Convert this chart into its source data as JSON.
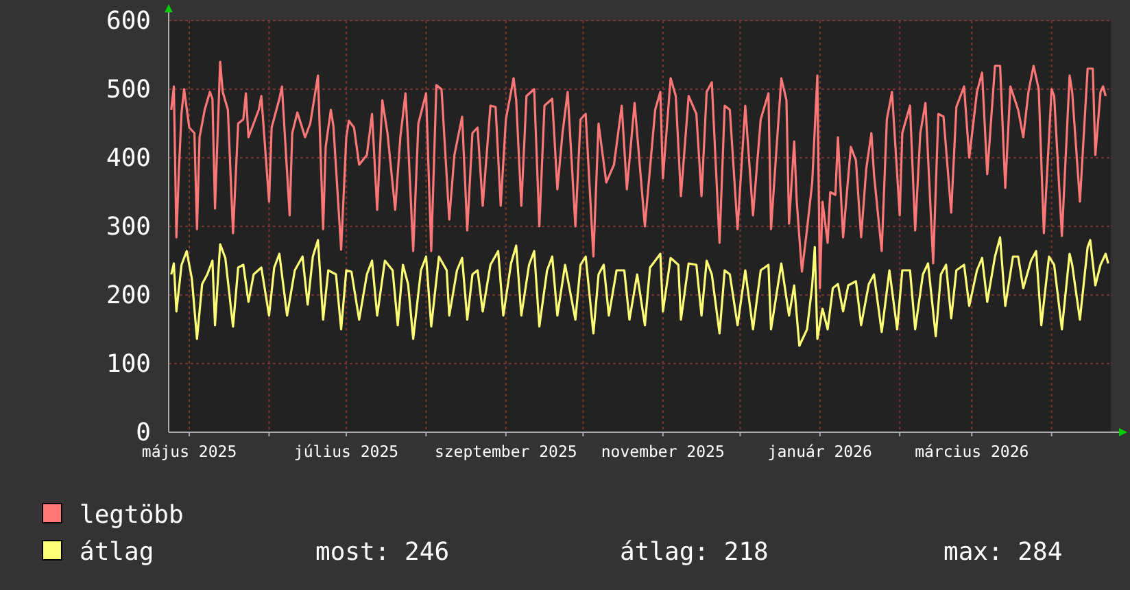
{
  "chart_data": {
    "type": "line",
    "xlim": [
      "2025-04-23",
      "2026-04-24"
    ],
    "xticks": [
      {
        "value": "2025-05-01",
        "label": "május 2025"
      },
      {
        "value": "2025-06-01",
        "label": null
      },
      {
        "value": "2025-07-01",
        "label": "július 2025"
      },
      {
        "value": "2025-08-01",
        "label": null
      },
      {
        "value": "2025-09-01",
        "label": "szeptember 2025"
      },
      {
        "value": "2025-10-01",
        "label": null
      },
      {
        "value": "2025-11-01",
        "label": "november 2025"
      },
      {
        "value": "2025-12-01",
        "label": null
      },
      {
        "value": "2026-01-01",
        "label": "január 2026"
      },
      {
        "value": "2026-02-01",
        "label": null
      },
      {
        "value": "2026-03-01",
        "label": "március 2026"
      },
      {
        "value": "2026-04-01",
        "label": null
      }
    ],
    "ylim": [
      0,
      600
    ],
    "yticks": [
      0,
      100,
      200,
      300,
      400,
      500,
      600
    ],
    "grid": true,
    "legend": "bottom",
    "annotations": [
      "most: 246",
      "átlag: 218",
      "max: 284"
    ],
    "series": [
      {
        "name": "legtöbb",
        "color": "#ff7777",
        "x": [
          "2025-04-24",
          "2025-04-25",
          "2025-04-26",
          "2025-04-27",
          "2025-04-28",
          "2025-04-29",
          "2025-05-01",
          "2025-05-03",
          "2025-05-04",
          "2025-05-05",
          "2025-05-07",
          "2025-05-09",
          "2025-05-10",
          "2025-05-11",
          "2025-05-13",
          "2025-05-14",
          "2025-05-16",
          "2025-05-18",
          "2025-05-20",
          "2025-05-22",
          "2025-05-23",
          "2025-05-24",
          "2025-05-26",
          "2025-05-28",
          "2025-05-29",
          "2025-06-01",
          "2025-06-02",
          "2025-06-05",
          "2025-06-06",
          "2025-06-09",
          "2025-06-10",
          "2025-06-12",
          "2025-06-15",
          "2025-06-17",
          "2025-06-20",
          "2025-06-22",
          "2025-06-23",
          "2025-06-25",
          "2025-06-26",
          "2025-06-29",
          "2025-07-01",
          "2025-07-02",
          "2025-07-04",
          "2025-07-06",
          "2025-07-09",
          "2025-07-11",
          "2025-07-13",
          "2025-07-15",
          "2025-07-17",
          "2025-07-20",
          "2025-07-22",
          "2025-07-24",
          "2025-07-25",
          "2025-07-27",
          "2025-07-29",
          "2025-08-01",
          "2025-08-03",
          "2025-08-05",
          "2025-08-07",
          "2025-08-10",
          "2025-08-12",
          "2025-08-15",
          "2025-08-17",
          "2025-08-19",
          "2025-08-21",
          "2025-08-23",
          "2025-08-26",
          "2025-08-28",
          "2025-08-30",
          "2025-09-01",
          "2025-09-04",
          "2025-09-05",
          "2025-09-07",
          "2025-09-09",
          "2025-09-12",
          "2025-09-14",
          "2025-09-16",
          "2025-09-19",
          "2025-09-21",
          "2025-09-23",
          "2025-09-25",
          "2025-09-28",
          "2025-09-30",
          "2025-10-02",
          "2025-10-05",
          "2025-10-07",
          "2025-10-10",
          "2025-10-13",
          "2025-10-16",
          "2025-10-18",
          "2025-10-21",
          "2025-10-25",
          "2025-10-29",
          "2025-10-31",
          "2025-11-01",
          "2025-11-04",
          "2025-11-06",
          "2025-11-08",
          "2025-11-11",
          "2025-11-14",
          "2025-11-16",
          "2025-11-18",
          "2025-11-20",
          "2025-11-23",
          "2025-11-25",
          "2025-11-27",
          "2025-11-30",
          "2025-12-03",
          "2025-12-06",
          "2025-12-09",
          "2025-12-12",
          "2025-12-13",
          "2025-12-17",
          "2025-12-19",
          "2025-12-20",
          "2025-12-22",
          "2025-12-23",
          "2025-12-25",
          "2025-12-27",
          "2025-12-29",
          "2025-12-31",
          "2026-01-01",
          "2026-01-02",
          "2026-01-04",
          "2026-01-05",
          "2026-01-07",
          "2026-01-08",
          "2026-01-10",
          "2026-01-13",
          "2026-01-15",
          "2026-01-17",
          "2026-01-19",
          "2026-01-21",
          "2026-01-22",
          "2026-01-25",
          "2026-01-27",
          "2026-01-29",
          "2026-02-01",
          "2026-02-02",
          "2026-02-05",
          "2026-02-07",
          "2026-02-09",
          "2026-02-11",
          "2026-02-14",
          "2026-02-16",
          "2026-02-18",
          "2026-02-21",
          "2026-02-23",
          "2026-02-26",
          "2026-02-28",
          "2026-03-03",
          "2026-03-05",
          "2026-03-07",
          "2026-03-10",
          "2026-03-12",
          "2026-03-14",
          "2026-03-16",
          "2026-03-19",
          "2026-03-21",
          "2026-03-23",
          "2026-03-25",
          "2026-03-27",
          "2026-03-29",
          "2026-04-01",
          "2026-04-02",
          "2026-04-05",
          "2026-04-08",
          "2026-04-09",
          "2026-04-12",
          "2026-04-15",
          "2026-04-17",
          "2026-04-18",
          "2026-04-20",
          "2026-04-21",
          "2026-04-22"
        ],
        "values": [
          470,
          504,
          284,
          384,
          466,
          500,
          444,
          436,
          296,
          430,
          470,
          496,
          486,
          326,
          540,
          496,
          470,
          290,
          450,
          456,
          494,
          430,
          450,
          470,
          490,
          336,
          444,
          486,
          504,
          316,
          436,
          466,
          430,
          450,
          520,
          296,
          416,
          470,
          446,
          266,
          430,
          454,
          444,
          390,
          404,
          464,
          324,
          484,
          436,
          324,
          430,
          494,
          424,
          264,
          450,
          494,
          264,
          506,
          500,
          310,
          404,
          460,
          294,
          436,
          444,
          330,
          476,
          474,
          330,
          456,
          516,
          484,
          330,
          490,
          500,
          300,
          476,
          486,
          354,
          436,
          496,
          300,
          456,
          464,
          256,
          450,
          364,
          390,
          476,
          354,
          480,
          300,
          470,
          496,
          370,
          516,
          490,
          344,
          490,
          464,
          344,
          496,
          510,
          276,
          476,
          470,
          296,
          476,
          316,
          456,
          494,
          296,
          516,
          484,
          304,
          424,
          336,
          234,
          296,
          364,
          520,
          210,
          336,
          276,
          350,
          346,
          430,
          284,
          416,
          396,
          284,
          384,
          436,
          376,
          264,
          456,
          496,
          316,
          436,
          476,
          294,
          436,
          480,
          246,
          464,
          460,
          320,
          474,
          504,
          400,
          496,
          524,
          376,
          534,
          534,
          356,
          504,
          470,
          430,
          496,
          534,
          500,
          290,
          500,
          490,
          286,
          520,
          496,
          336,
          530,
          530,
          404,
          496,
          504,
          490
        ]
      },
      {
        "name": "átlag",
        "color": "#ffff77",
        "x": [
          "2025-04-24",
          "2025-04-25",
          "2025-04-26",
          "2025-04-28",
          "2025-04-30",
          "2025-05-02",
          "2025-05-04",
          "2025-05-06",
          "2025-05-08",
          "2025-05-10",
          "2025-05-11",
          "2025-05-13",
          "2025-05-15",
          "2025-05-18",
          "2025-05-20",
          "2025-05-22",
          "2025-05-24",
          "2025-05-26",
          "2025-05-29",
          "2025-06-01",
          "2025-06-03",
          "2025-06-05",
          "2025-06-08",
          "2025-06-11",
          "2025-06-14",
          "2025-06-16",
          "2025-06-18",
          "2025-06-20",
          "2025-06-22",
          "2025-06-24",
          "2025-06-27",
          "2025-06-29",
          "2025-07-01",
          "2025-07-03",
          "2025-07-06",
          "2025-07-09",
          "2025-07-11",
          "2025-07-13",
          "2025-07-16",
          "2025-07-19",
          "2025-07-21",
          "2025-07-23",
          "2025-07-25",
          "2025-07-27",
          "2025-07-30",
          "2025-08-01",
          "2025-08-03",
          "2025-08-06",
          "2025-08-09",
          "2025-08-10",
          "2025-08-13",
          "2025-08-15",
          "2025-08-17",
          "2025-08-19",
          "2025-08-21",
          "2025-08-23",
          "2025-08-26",
          "2025-08-29",
          "2025-08-31",
          "2025-09-03",
          "2025-09-05",
          "2025-09-07",
          "2025-09-10",
          "2025-09-12",
          "2025-09-14",
          "2025-09-17",
          "2025-09-19",
          "2025-09-21",
          "2025-09-24",
          "2025-09-28",
          "2025-09-30",
          "2025-10-02",
          "2025-10-05",
          "2025-10-07",
          "2025-10-09",
          "2025-10-11",
          "2025-10-14",
          "2025-10-17",
          "2025-10-19",
          "2025-10-22",
          "2025-10-25",
          "2025-10-27",
          "2025-10-31",
          "2025-11-01",
          "2025-11-04",
          "2025-11-07",
          "2025-11-08",
          "2025-11-11",
          "2025-11-14",
          "2025-11-16",
          "2025-11-18",
          "2025-11-20",
          "2025-11-23",
          "2025-11-25",
          "2025-11-27",
          "2025-11-30",
          "2025-12-03",
          "2025-12-06",
          "2025-12-09",
          "2025-12-12",
          "2025-12-13",
          "2025-12-17",
          "2025-12-20",
          "2025-12-22",
          "2025-12-24",
          "2025-12-27",
          "2025-12-29",
          "2025-12-30",
          "2025-12-31",
          "2026-01-02",
          "2026-01-04",
          "2026-01-06",
          "2026-01-08",
          "2026-01-10",
          "2026-01-12",
          "2026-01-15",
          "2026-01-17",
          "2026-01-20",
          "2026-01-22",
          "2026-01-25",
          "2026-01-28",
          "2026-01-31",
          "2026-02-02",
          "2026-02-05",
          "2026-02-07",
          "2026-02-10",
          "2026-02-12",
          "2026-02-15",
          "2026-02-17",
          "2026-02-19",
          "2026-02-21",
          "2026-02-23",
          "2026-02-26",
          "2026-02-28",
          "2026-03-03",
          "2026-03-05",
          "2026-03-07",
          "2026-03-10",
          "2026-03-12",
          "2026-03-14",
          "2026-03-17",
          "2026-03-19",
          "2026-03-21",
          "2026-03-24",
          "2026-03-26",
          "2026-03-28",
          "2026-03-31",
          "2026-04-02",
          "2026-04-05",
          "2026-04-08",
          "2026-04-09",
          "2026-04-12",
          "2026-04-15",
          "2026-04-16",
          "2026-04-18",
          "2026-04-20",
          "2026-04-22",
          "2026-04-23"
        ],
        "values": [
          230,
          246,
          176,
          244,
          264,
          224,
          136,
          216,
          230,
          250,
          156,
          274,
          254,
          154,
          240,
          244,
          190,
          230,
          240,
          170,
          240,
          260,
          170,
          236,
          256,
          186,
          256,
          280,
          164,
          236,
          230,
          150,
          236,
          234,
          164,
          230,
          250,
          170,
          250,
          236,
          156,
          244,
          216,
          136,
          236,
          256,
          154,
          256,
          236,
          170,
          236,
          254,
          164,
          230,
          236,
          176,
          244,
          264,
          170,
          246,
          272,
          170,
          244,
          264,
          154,
          236,
          256,
          170,
          244,
          164,
          244,
          256,
          144,
          230,
          244,
          170,
          236,
          236,
          164,
          230,
          156,
          240,
          260,
          176,
          254,
          244,
          164,
          246,
          244,
          170,
          250,
          230,
          144,
          236,
          230,
          156,
          236,
          150,
          236,
          244,
          150,
          246,
          170,
          214,
          126,
          150,
          214,
          270,
          136,
          180,
          150,
          210,
          216,
          176,
          214,
          220,
          156,
          216,
          230,
          146,
          236,
          150,
          236,
          236,
          150,
          230,
          246,
          140,
          230,
          244,
          166,
          236,
          244,
          184,
          236,
          254,
          190,
          256,
          284,
          184,
          256,
          256,
          210,
          250,
          264,
          156,
          256,
          244,
          150,
          260,
          244,
          164,
          270,
          280,
          214,
          244,
          260,
          246
        ]
      }
    ]
  }
}
